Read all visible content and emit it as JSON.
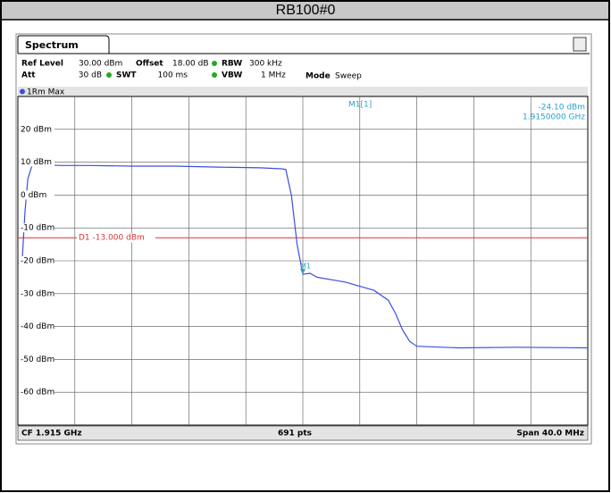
{
  "header": {
    "title": "RB100#0"
  },
  "tab": "Spectrum",
  "settings": {
    "ref_level_label": "Ref Level",
    "ref_level": "30.00 dBm",
    "offset_label": "Offset",
    "offset": "18.00 dB",
    "rbw_label": "RBW",
    "rbw": "300 kHz",
    "att_label": "Att",
    "att": "30 dB",
    "swt_label": "SWT",
    "swt": "100 ms",
    "vbw_label": "VBW",
    "vbw": "1 MHz",
    "mode_label": "Mode",
    "mode": "Sweep"
  },
  "trace_label": "1Rm Max",
  "marker": {
    "name": "M1[1]",
    "tag": "M1",
    "level_label": "-24.10 dBm",
    "freq_label": "1.9150000 GHz",
    "x": 1.915,
    "value": -24.1
  },
  "display_line": {
    "label": "D1 -13.000 dBm",
    "value": -13
  },
  "ylim": [
    -70,
    30
  ],
  "xlim": [
    1.895,
    1.935
  ],
  "yticks": [
    {
      "value": 20,
      "label": "20 dBm"
    },
    {
      "value": 10,
      "label": "10 dBm"
    },
    {
      "value": 0,
      "label": "0 dBm"
    },
    {
      "value": -10,
      "label": "-10 dBm"
    },
    {
      "value": -20,
      "label": "-20 dBm"
    },
    {
      "value": -30,
      "label": "-30 dBm"
    },
    {
      "value": -40,
      "label": "-40 dBm"
    },
    {
      "value": -50,
      "label": "-50 dBm"
    },
    {
      "value": -60,
      "label": "-60 dBm"
    }
  ],
  "trace": {
    "color": "#3b4fe0",
    "x": [
      1.895,
      1.8953,
      1.8955,
      1.8957,
      1.896,
      1.8965,
      1.898,
      1.9,
      1.903,
      1.906,
      1.909,
      1.912,
      1.9135,
      1.9138,
      1.9142,
      1.9146,
      1.915,
      1.9155,
      1.916,
      1.918,
      1.92,
      1.921,
      1.9215,
      1.922,
      1.9225,
      1.923,
      1.926,
      1.93,
      1.935
    ],
    "values": [
      -21,
      -20,
      -5,
      5,
      9,
      9.3,
      9,
      9,
      8.8,
      8.8,
      8.5,
      8.3,
      8,
      7.8,
      0,
      -15,
      -24.1,
      -23.8,
      -25,
      -26.5,
      -29,
      -32,
      -36,
      -41,
      -44.5,
      -46,
      -46.5,
      -46.3,
      -46.5
    ]
  },
  "footer": {
    "center_freq": "CF 1.915 GHz",
    "points": "691 pts",
    "span": "Span 40.0 MHz"
  }
}
